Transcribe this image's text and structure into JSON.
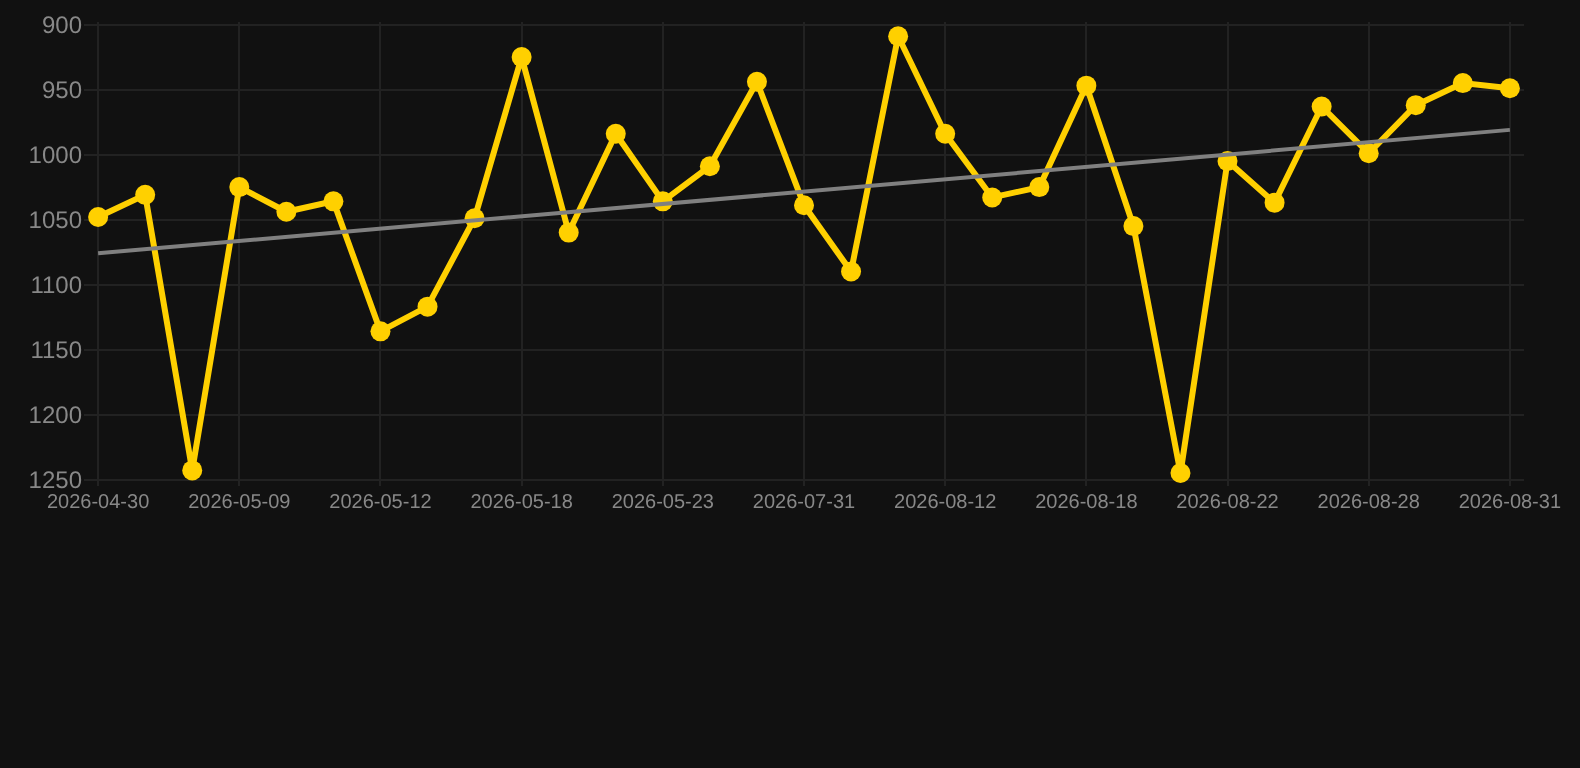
{
  "chart_data": {
    "type": "line",
    "categories": [
      "2026-04-30",
      null,
      null,
      "2026-05-09",
      null,
      null,
      "2026-05-12",
      null,
      null,
      "2026-05-18",
      null,
      null,
      "2026-05-23",
      null,
      null,
      "2026-07-31",
      null,
      null,
      "2026-08-12",
      null,
      null,
      "2026-08-18",
      null,
      null,
      "2026-08-22",
      null,
      null,
      "2026-08-28",
      null,
      null,
      "2026-08-31"
    ],
    "series": [
      {
        "color": "#ffd000",
        "values": [
          1048,
          1031,
          1243,
          1025,
          1044,
          1036,
          1136,
          1117,
          1049,
          925,
          1060,
          984,
          1036,
          1009,
          944,
          1039,
          1090,
          909,
          984,
          1033,
          1025,
          947,
          1055,
          1245,
          1005,
          1037,
          963,
          999,
          962,
          945,
          949
        ]
      },
      {
        "type": "line",
        "color": "#808080",
        "marker": "none",
        "values": [
          1076,
          null,
          null,
          null,
          null,
          null,
          null,
          null,
          null,
          null,
          null,
          null,
          null,
          null,
          null,
          null,
          null,
          null,
          null,
          null,
          null,
          null,
          null,
          null,
          null,
          null,
          null,
          null,
          null,
          null,
          981
        ]
      }
    ],
    "ylim": [
      1255,
      898
    ],
    "yticks": [
      900,
      950,
      1000,
      1050,
      1100,
      1150,
      1200,
      1250
    ],
    "grid": true,
    "marker": "circle",
    "line_style": "solid"
  }
}
